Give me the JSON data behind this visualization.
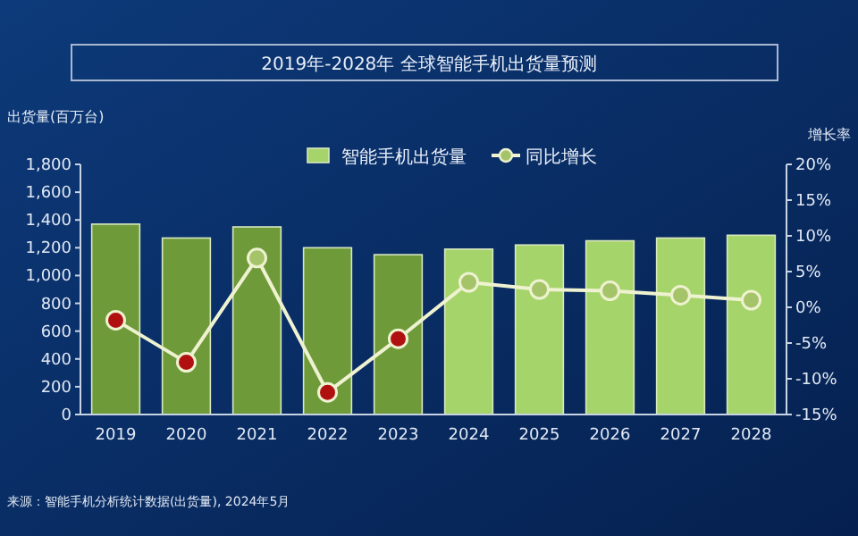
{
  "chart_data": {
    "type": "bar",
    "title": "2019年-2028年 全球智能手机出货量预测",
    "ylabel": "出货量(百万台)",
    "y2label": "增长率",
    "categories": [
      "2019",
      "2020",
      "2021",
      "2022",
      "2023",
      "2024",
      "2025",
      "2026",
      "2027",
      "2028"
    ],
    "series": [
      {
        "name": "智能手机出货量",
        "color": "#a5d46a",
        "colors": [
          "#6e9a3a",
          "#6e9a3a",
          "#6e9a3a",
          "#6e9a3a",
          "#6e9a3a",
          "#a5d46a",
          "#a5d46a",
          "#a5d46a",
          "#a5d46a",
          "#a5d46a"
        ],
        "values": [
          1370,
          1270,
          1350,
          1200,
          1150,
          1190,
          1220,
          1250,
          1270,
          1290
        ]
      },
      {
        "name": "同比增长",
        "type": "line",
        "axis": "y2",
        "color": "#eef2d0",
        "marker": "circle",
        "colors": [
          "#b01010",
          "#b01010",
          "#a5c46a",
          "#b01010",
          "#b01010",
          "#a5c46a",
          "#a5c46a",
          "#a5c46a",
          "#a5c46a",
          "#a5c46a"
        ],
        "values": [
          -1.8,
          -7.7,
          6.9,
          -11.9,
          -4.4,
          3.5,
          2.5,
          2.3,
          1.7,
          1.0
        ]
      }
    ],
    "ylim": [
      0,
      1800
    ],
    "yticks": [
      0,
      200,
      400,
      600,
      800,
      {
        "value": 1000,
        "label": "1,000"
      },
      {
        "value": 1200,
        "label": "1,200"
      },
      {
        "value": 1400,
        "label": "1,400"
      },
      {
        "value": 1600,
        "label": "1,600"
      },
      {
        "value": 1800,
        "label": "1,800"
      }
    ],
    "y2lim": [
      -15,
      20
    ],
    "y2ticks": [
      {
        "value": -15,
        "label": "-15%"
      },
      {
        "value": -10,
        "label": "-10%"
      },
      {
        "value": -5,
        "label": "-5%"
      },
      {
        "value": 0,
        "label": "0%"
      },
      {
        "value": 5,
        "label": "5%"
      },
      {
        "value": 10,
        "label": "10%"
      },
      {
        "value": 15,
        "label": "15%"
      },
      {
        "value": 20,
        "label": "20%"
      }
    ],
    "legend": "top",
    "grid": false,
    "annotations": [
      "来源：智能手机分析统计数据(出货量), 2024年5月"
    ]
  }
}
